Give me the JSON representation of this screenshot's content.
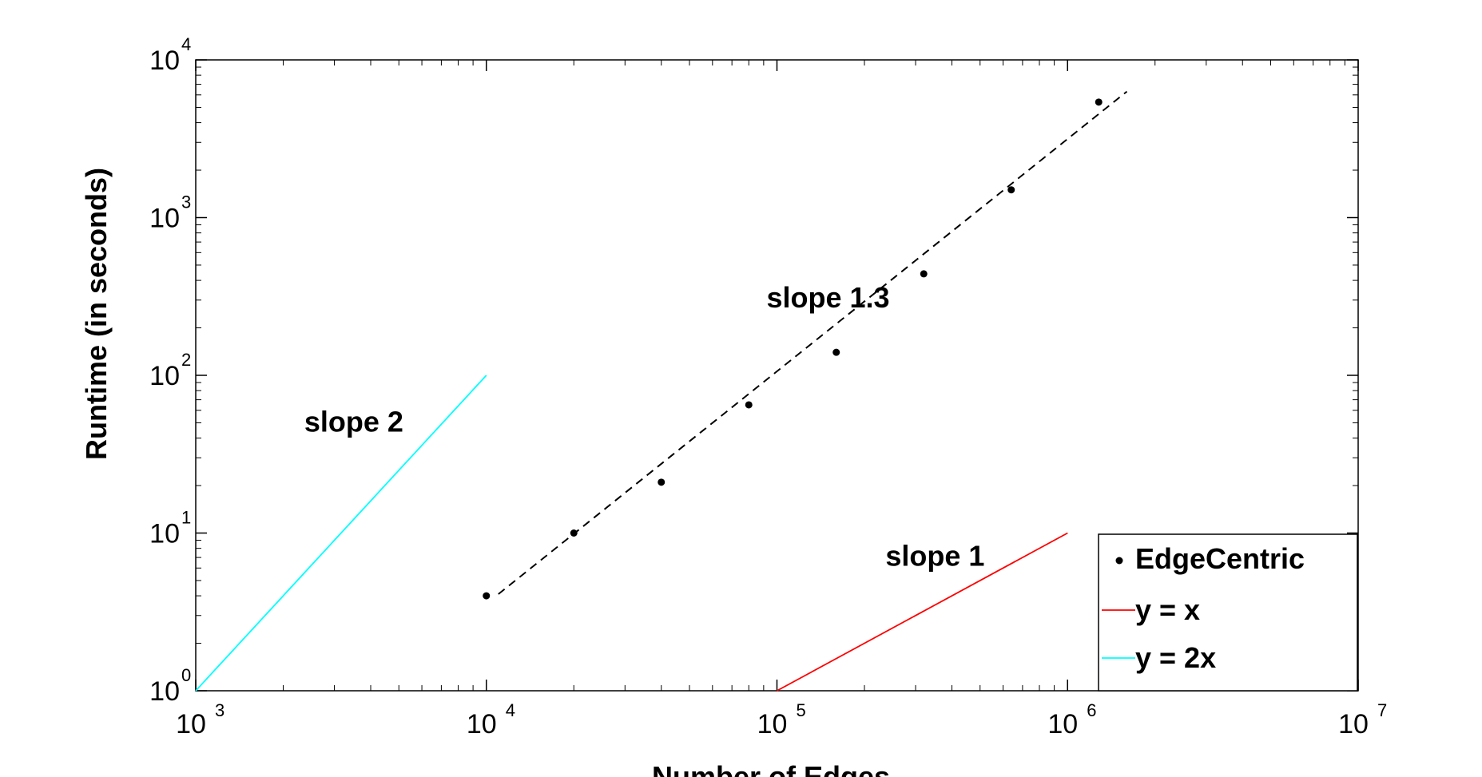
{
  "chart_data": {
    "type": "scatter",
    "x_scale": "log",
    "y_scale": "log",
    "xlim": [
      1000,
      10000000
    ],
    "ylim": [
      1,
      10000
    ],
    "xlabel": "Number of Edges",
    "ylabel": "Runtime (in seconds)",
    "x_ticks": [
      {
        "base": "10",
        "exp": "3",
        "value": 1000
      },
      {
        "base": "10",
        "exp": "4",
        "value": 10000
      },
      {
        "base": "10",
        "exp": "5",
        "value": 100000
      },
      {
        "base": "10",
        "exp": "6",
        "value": 1000000
      },
      {
        "base": "10",
        "exp": "7",
        "value": 10000000
      }
    ],
    "y_ticks": [
      {
        "base": "10",
        "exp": "0",
        "value": 1
      },
      {
        "base": "10",
        "exp": "1",
        "value": 10
      },
      {
        "base": "10",
        "exp": "2",
        "value": 100
      },
      {
        "base": "10",
        "exp": "3",
        "value": 1000
      },
      {
        "base": "10",
        "exp": "4",
        "value": 10000
      }
    ],
    "series": [
      {
        "name": "EdgeCentric",
        "kind": "points",
        "color": "#000000",
        "x": [
          10000,
          20000,
          40000,
          80000,
          160000,
          320000,
          640000,
          1280000
        ],
        "y": [
          4,
          10,
          21,
          65,
          140,
          440,
          1500,
          5400
        ]
      },
      {
        "name": "y = x",
        "kind": "line",
        "color": "#ff0000",
        "x": [
          100000,
          1000000
        ],
        "y": [
          1,
          10
        ]
      },
      {
        "name": "y = 2x",
        "kind": "line",
        "color": "#00ffff",
        "x": [
          1000,
          10000
        ],
        "y": [
          1,
          100
        ]
      },
      {
        "name": "",
        "kind": "fit",
        "style": "dashed",
        "color": "#000000",
        "x": [
          11000,
          1600000
        ],
        "y": [
          4.1,
          6300
        ]
      }
    ],
    "annotations": [
      {
        "text": "slope 1.3",
        "x": 150000,
        "y": 270
      },
      {
        "text": "slope 2",
        "x": 3500,
        "y": 44
      },
      {
        "text": "slope 1",
        "x": 350000,
        "y": 6.2
      }
    ],
    "legend": {
      "position": "bottom-right"
    },
    "grid": false
  }
}
